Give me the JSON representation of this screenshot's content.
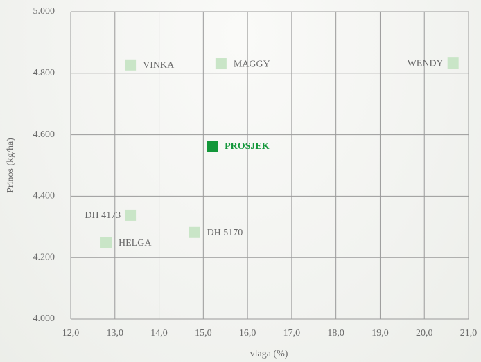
{
  "chart_data": {
    "type": "scatter",
    "x_label": "vlaga (%)",
    "y_label": "Prinos (kg/ha)",
    "xlim": [
      12,
      21
    ],
    "ylim": [
      4000,
      5000
    ],
    "xticks": [
      {
        "value": 12,
        "label": "12,0"
      },
      {
        "value": 13,
        "label": "13,0"
      },
      {
        "value": 14,
        "label": "14,0"
      },
      {
        "value": 15,
        "label": "15,0"
      },
      {
        "value": 16,
        "label": "16,0"
      },
      {
        "value": 17,
        "label": "17,0"
      },
      {
        "value": 18,
        "label": "18,0"
      },
      {
        "value": 19,
        "label": "19,0"
      },
      {
        "value": 20,
        "label": "20,0"
      },
      {
        "value": 21,
        "label": "21,0"
      }
    ],
    "yticks": [
      {
        "value": 4000,
        "label": "4.000"
      },
      {
        "value": 4200,
        "label": "4.200"
      },
      {
        "value": 4400,
        "label": "4.400"
      },
      {
        "value": 4600,
        "label": "4.600"
      },
      {
        "value": 4800,
        "label": "4.800"
      },
      {
        "value": 5000,
        "label": "5.000"
      }
    ],
    "grid": true,
    "series": [
      {
        "name": "VINKA",
        "color": "#c9e5c7",
        "x": [
          13.35
        ],
        "values": [
          4827
        ]
      },
      {
        "name": "MAGGY",
        "color": "#c9e5c7",
        "x": [
          15.4
        ],
        "values": [
          4831
        ]
      },
      {
        "name": "WENDY",
        "color": "#c9e5c7",
        "x": [
          20.65
        ],
        "values": [
          4833
        ]
      },
      {
        "name": "PROSJEK",
        "color": "#13973a",
        "x": [
          15.2
        ],
        "values": [
          4563
        ]
      },
      {
        "name": "DH 4173",
        "color": "#c9e5c7",
        "x": [
          13.35
        ],
        "values": [
          4338
        ]
      },
      {
        "name": "HELGA",
        "color": "#c9e5c7",
        "x": [
          12.8
        ],
        "values": [
          4248
        ]
      },
      {
        "name": "DH 5170",
        "color": "#c9e5c7",
        "x": [
          14.8
        ],
        "values": [
          4282
        ]
      }
    ]
  }
}
